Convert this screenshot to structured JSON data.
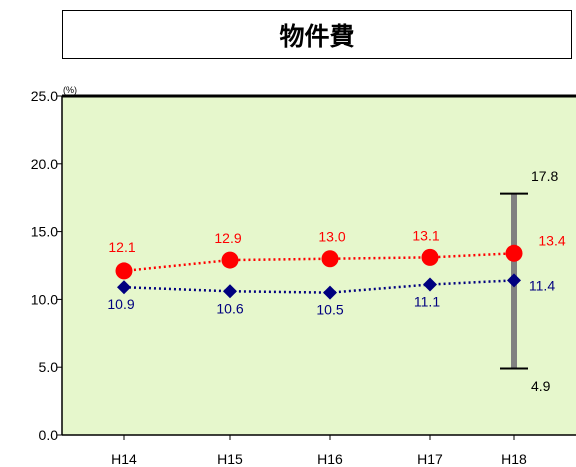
{
  "chart_data": {
    "type": "line",
    "title": "物件費",
    "unit_label": "(%)",
    "categories": [
      "H14",
      "H15",
      "H16",
      "H17",
      "H18"
    ],
    "ylim": [
      0,
      25
    ],
    "yticks": [
      "0.0",
      "5.0",
      "10.0",
      "15.0",
      "20.0",
      "25.0"
    ],
    "series": [
      {
        "color": "#ff0000",
        "marker": "circle",
        "line": "dotted",
        "values": [
          12.1,
          12.9,
          13.0,
          13.1,
          13.4
        ],
        "labels": [
          "12.1",
          "12.9",
          "13.0",
          "13.1",
          "13.4"
        ]
      },
      {
        "color": "#00007f",
        "marker": "diamond",
        "line": "dotted",
        "values": [
          10.9,
          10.6,
          10.5,
          11.1,
          11.4
        ],
        "labels": [
          "10.9",
          "10.6",
          "10.5",
          "11.1",
          "11.4"
        ]
      }
    ],
    "range_bar": {
      "category": "H18",
      "max": 17.8,
      "min": 4.9,
      "max_label": "17.8",
      "min_label": "4.9",
      "color": "#808080"
    },
    "plot_background": "#e6f7cc",
    "grid": false,
    "legend": "none"
  }
}
